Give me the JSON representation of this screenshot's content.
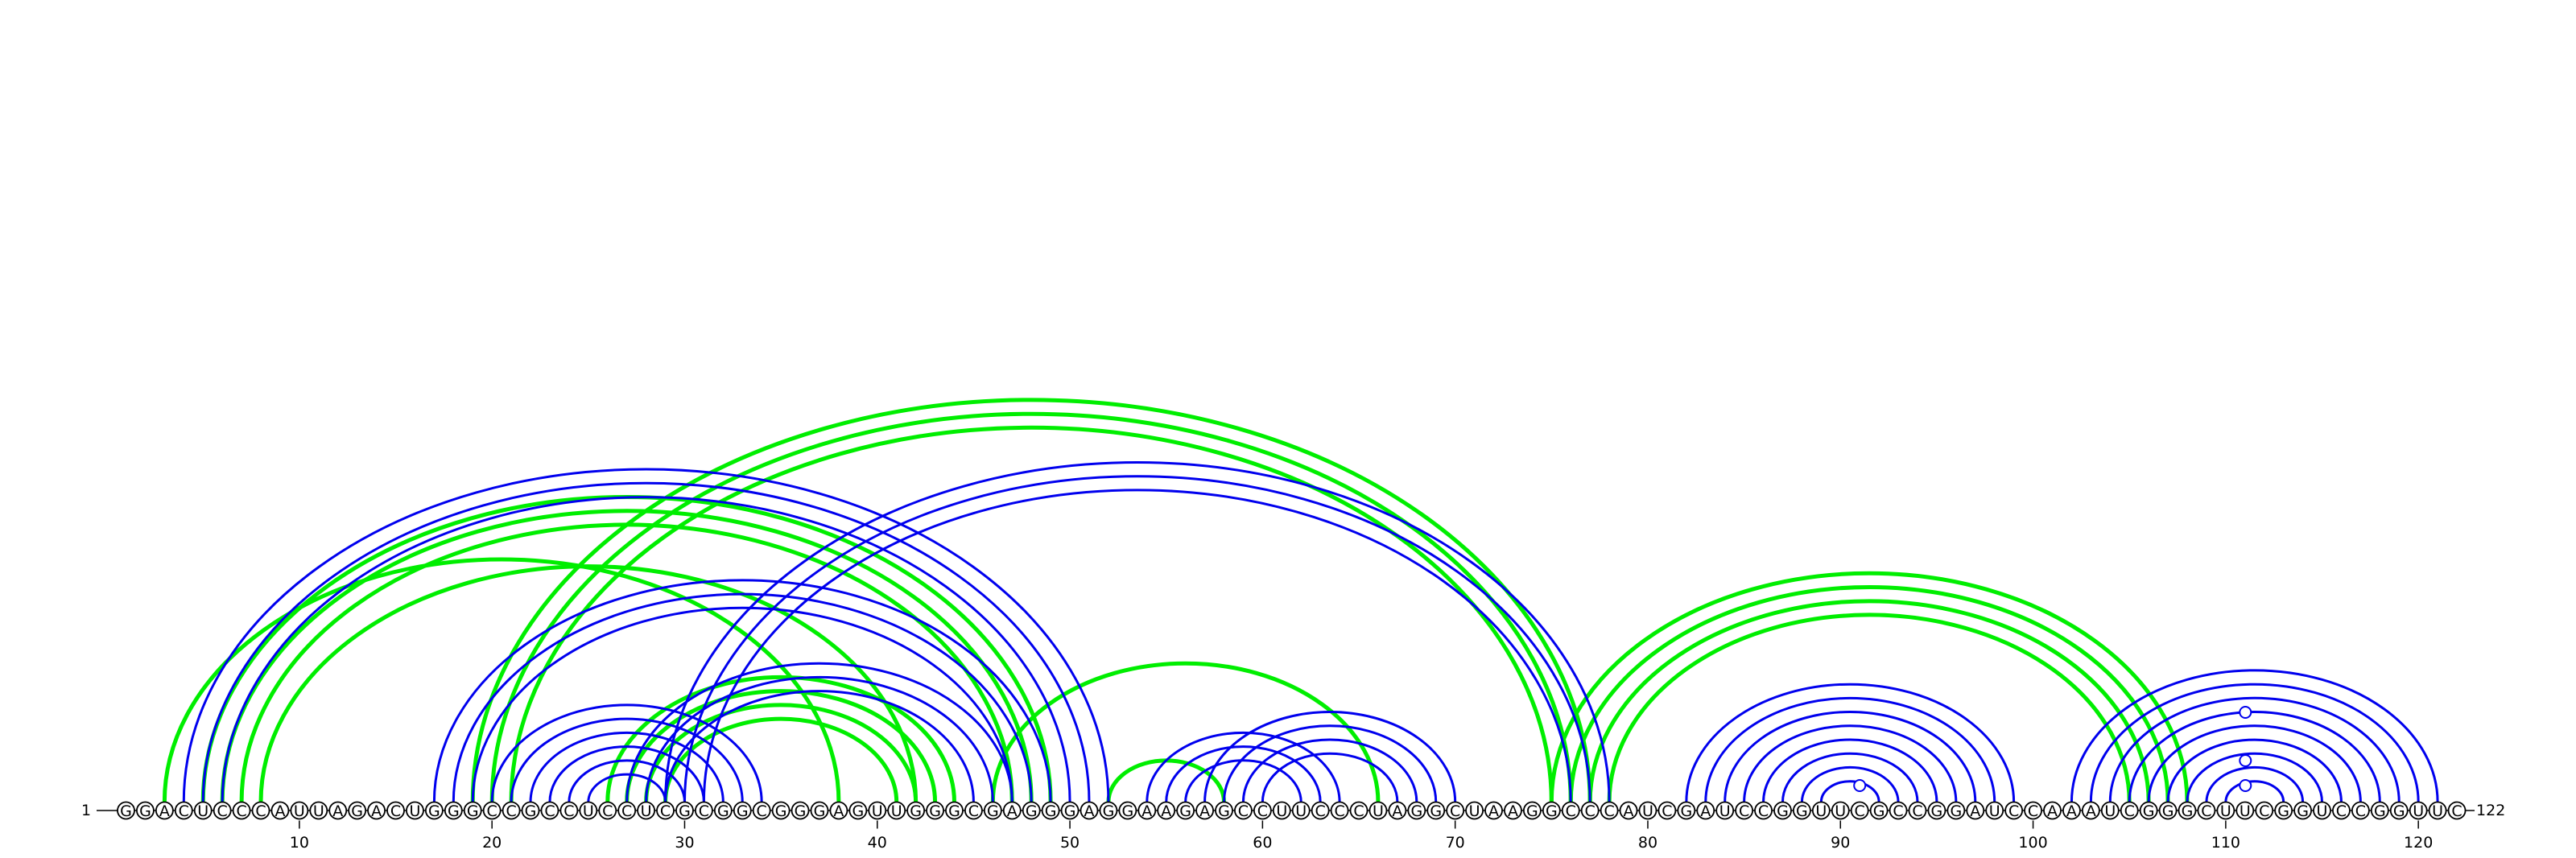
{
  "diagram": {
    "sequence": "GGACUCCCAUUAGACUGGGCCGCCUCCUCGCGGCGGGAGUUGGGCGAGGGAGGAAGAGCCUUCCCUAGGCUAAGGCCCAUCGAUCCGGUUCGCCGGAUCCAAAUCGGGCUUCGGUCCGGUUC",
    "start_label": "1",
    "end_label": "122",
    "ticks": [
      10,
      20,
      30,
      40,
      50,
      60,
      70,
      80,
      90,
      100,
      110,
      120
    ],
    "colors": {
      "blue": "#0000ee",
      "green": "#00ee00"
    },
    "blue_pairs": [
      [
        4,
        52
      ],
      [
        5,
        51
      ],
      [
        6,
        50
      ],
      [
        17,
        49
      ],
      [
        18,
        48
      ],
      [
        19,
        47
      ],
      [
        20,
        34
      ],
      [
        21,
        33
      ],
      [
        22,
        32
      ],
      [
        23,
        31
      ],
      [
        24,
        30
      ],
      [
        25,
        29
      ],
      [
        27,
        47
      ],
      [
        28,
        46
      ],
      [
        29,
        45
      ],
      [
        29,
        78
      ],
      [
        30,
        77
      ],
      [
        31,
        76
      ],
      [
        54,
        64
      ],
      [
        55,
        63
      ],
      [
        56,
        62
      ],
      [
        57,
        70
      ],
      [
        58,
        69
      ],
      [
        59,
        68
      ],
      [
        60,
        67
      ],
      [
        82,
        99
      ],
      [
        83,
        98
      ],
      [
        84,
        97
      ],
      [
        85,
        96
      ],
      [
        86,
        95
      ],
      [
        87,
        94
      ],
      [
        88,
        93
      ],
      [
        89,
        92
      ],
      [
        102,
        121
      ],
      [
        103,
        120
      ],
      [
        104,
        119
      ],
      [
        105,
        118
      ],
      [
        106,
        117
      ],
      [
        107,
        116
      ],
      [
        108,
        115
      ],
      [
        109,
        114
      ],
      [
        110,
        113
      ]
    ],
    "green_pairs": [
      [
        3,
        38
      ],
      [
        5,
        49
      ],
      [
        6,
        48
      ],
      [
        7,
        47
      ],
      [
        8,
        42
      ],
      [
        19,
        77
      ],
      [
        20,
        76
      ],
      [
        21,
        75
      ],
      [
        26,
        44
      ],
      [
        27,
        43
      ],
      [
        28,
        42
      ],
      [
        29,
        41
      ],
      [
        46,
        66
      ],
      [
        52,
        58
      ],
      [
        75,
        108
      ],
      [
        76,
        107
      ],
      [
        77,
        106
      ],
      [
        78,
        105
      ]
    ],
    "pseudoknot_markers": [
      91,
      111,
      111,
      111
    ]
  }
}
